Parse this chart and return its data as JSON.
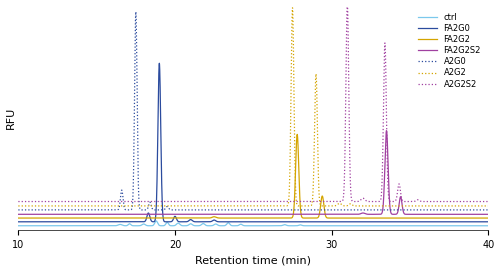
{
  "xlim": [
    10,
    40
  ],
  "ylim": [
    -0.02,
    1.0
  ],
  "xlabel": "Retention time (min)",
  "ylabel": "RFU",
  "colors": {
    "ctrl": "#7BC8EC",
    "FA2G0": "#2B4B9E",
    "FA2G2": "#D4A400",
    "FA2G2S2": "#A040A0",
    "A2G0": "#2B4B9E",
    "A2G2": "#D4A400",
    "A2G2S2": "#A040A0"
  },
  "baselines": {
    "ctrl": 0.0,
    "FA2G0": 0.018,
    "FA2G2": 0.035,
    "FA2G2S2": 0.052,
    "A2G0": 0.072,
    "A2G2": 0.09,
    "A2G2S2": 0.11
  }
}
